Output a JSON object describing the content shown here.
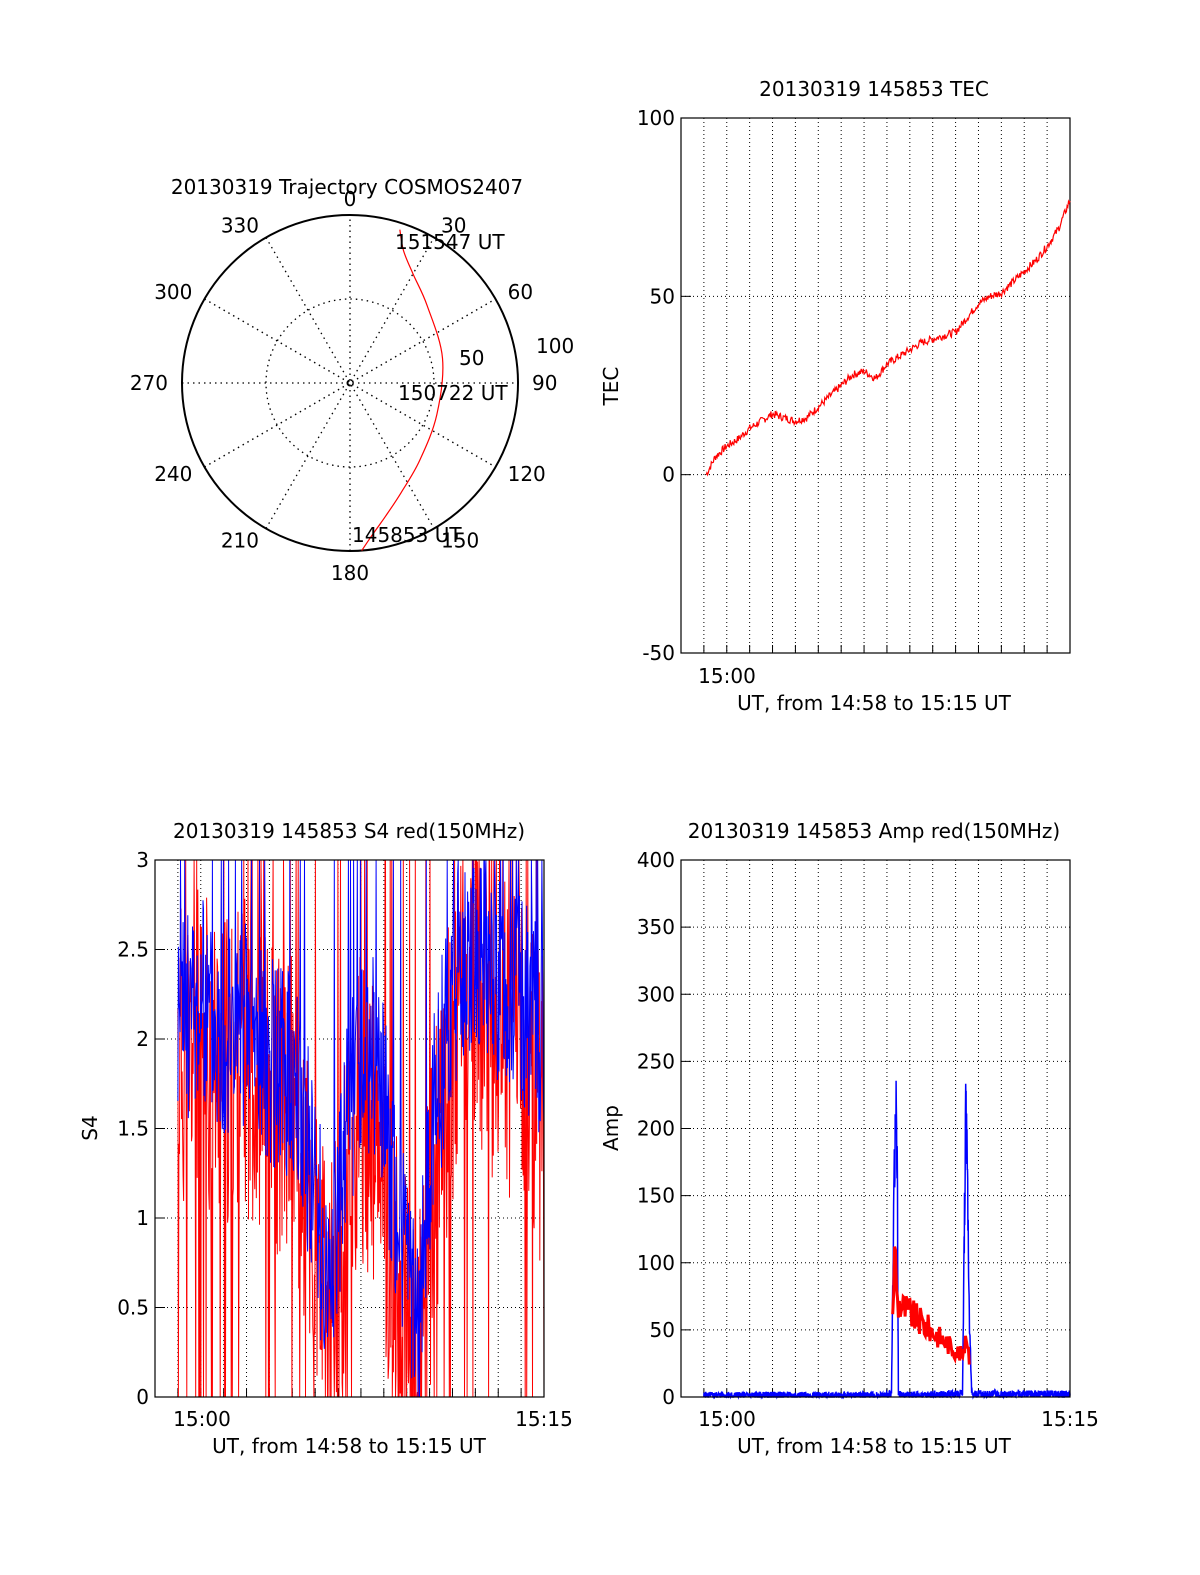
{
  "colors": {
    "red": "#ff0000",
    "blue": "#0000ff",
    "axis": "#000000",
    "grid": "#000000"
  },
  "chart_data": [
    {
      "id": "trajectory",
      "type": "polar",
      "title": "20130319 Trajectory COSMOS2407",
      "azimuth_labels": [
        "0",
        "30",
        "60",
        "90",
        "120",
        "150",
        "180",
        "210",
        "240",
        "270",
        "300",
        "330"
      ],
      "elevation_rings": [
        "50",
        "100"
      ],
      "time_labels": {
        "start": "145853 UT",
        "mid": "150722 UT",
        "end": "151547 UT"
      },
      "track_polar_az_deg": [
        176,
        172,
        165,
        155,
        138,
        110,
        75,
        45,
        30,
        22,
        18
      ],
      "track_polar_r": [
        100,
        92,
        82,
        72,
        62,
        55,
        57,
        65,
        75,
        85,
        96
      ]
    },
    {
      "id": "tec",
      "type": "line",
      "title": "20130319 145853 TEC",
      "xlabel": "UT, from 14:58 to 15:15 UT",
      "ylabel": "TEC",
      "xlim": [
        0,
        17
      ],
      "ylim": [
        -50,
        100
      ],
      "yticks": [
        "-50",
        "0",
        "50",
        "100"
      ],
      "xtick_labels": [
        "15:00"
      ],
      "series": [
        {
          "name": "TEC",
          "color": "red",
          "x": [
            1.1,
            1.5,
            2,
            2.5,
            3,
            3.5,
            4,
            4.5,
            5,
            5.5,
            6,
            6.5,
            7,
            7.5,
            8,
            8.5,
            9,
            9.5,
            10,
            10.5,
            11,
            11.5,
            12,
            12.5,
            13,
            13.5,
            14,
            14.5,
            15,
            15.5,
            16,
            16.5,
            17
          ],
          "y": [
            0,
            5,
            8,
            10,
            13,
            15,
            17,
            16,
            15,
            16,
            19,
            22,
            25,
            28,
            29,
            27,
            31,
            33,
            35,
            37,
            38,
            39,
            40,
            44,
            48,
            50,
            51,
            54,
            57,
            60,
            64,
            69,
            77
          ]
        }
      ]
    },
    {
      "id": "s4",
      "type": "line",
      "title": "20130319 145853 S4 red(150MHz)",
      "xlabel": "UT, from 14:58 to 15:15 UT",
      "ylabel": "S4",
      "xlim": [
        0,
        17
      ],
      "ylim": [
        0,
        3
      ],
      "yticks": [
        "0",
        "0.5",
        "1",
        "1.5",
        "2",
        "2.5",
        "3"
      ],
      "xtick_labels": [
        "15:00",
        "15:15"
      ],
      "series": [
        {
          "name": "S4 red",
          "color": "red",
          "x": [
            0,
            1,
            2,
            3,
            4,
            5,
            6,
            6.5,
            7,
            7.5,
            8,
            8.5,
            9,
            9.5,
            10,
            10.5,
            11,
            11.5,
            12,
            13,
            14,
            15,
            16,
            17
          ],
          "y": [
            1.6,
            1.9,
            2.0,
            1.8,
            1.9,
            1.7,
            1.6,
            1.2,
            0.8,
            0.4,
            0.7,
            1.3,
            1.6,
            1.5,
            1.1,
            0.6,
            0.3,
            0.1,
            0.9,
            2.0,
            2.2,
            2.1,
            1.9,
            1.6
          ]
        },
        {
          "name": "S4 blue",
          "color": "blue",
          "x": [
            0,
            1,
            2,
            3,
            4,
            5,
            6,
            6.5,
            7,
            7.5,
            8,
            8.5,
            9,
            9.5,
            10,
            10.5,
            11,
            11.5,
            12,
            13,
            14,
            15,
            16,
            17
          ],
          "y": [
            1.9,
            2.1,
            2.2,
            2.0,
            2.1,
            1.9,
            1.8,
            1.5,
            1.2,
            0.6,
            1.0,
            1.6,
            1.9,
            1.9,
            1.6,
            1.1,
            0.8,
            0.2,
            1.4,
            2.3,
            2.5,
            2.3,
            2.2,
            2.0
          ]
        }
      ]
    },
    {
      "id": "amp",
      "type": "line",
      "title": "20130319 145853 Amp red(150MHz)",
      "xlabel": "UT, from 14:58 to 15:15 UT",
      "ylabel": "Amp",
      "xlim": [
        0,
        17
      ],
      "ylim": [
        0,
        400
      ],
      "yticks": [
        "0",
        "50",
        "100",
        "150",
        "200",
        "250",
        "300",
        "350",
        "400"
      ],
      "xtick_labels": [
        "15:00",
        "15:15"
      ],
      "series": [
        {
          "name": "Amp blue",
          "color": "blue",
          "x": [
            1.0,
            9.0,
            9.2,
            9.3,
            9.35,
            9.4,
            9.45,
            9.5,
            9.7,
            12.0,
            12.3,
            12.4,
            12.45,
            12.5,
            12.55,
            12.6,
            12.7,
            12.8,
            17
          ],
          "y": [
            1,
            1,
            2,
            150,
            190,
            210,
            170,
            2,
            1,
            2,
            3,
            150,
            220,
            180,
            130,
            60,
            5,
            2,
            2
          ]
        },
        {
          "name": "Amp red",
          "color": "red",
          "x": [
            9.25,
            9.3,
            9.35,
            9.4,
            9.45,
            12.35,
            12.4,
            12.45,
            12.5,
            12.55,
            12.6
          ],
          "y": [
            60,
            90,
            110,
            95,
            70,
            30,
            40,
            50,
            45,
            35,
            30
          ]
        }
      ]
    }
  ]
}
